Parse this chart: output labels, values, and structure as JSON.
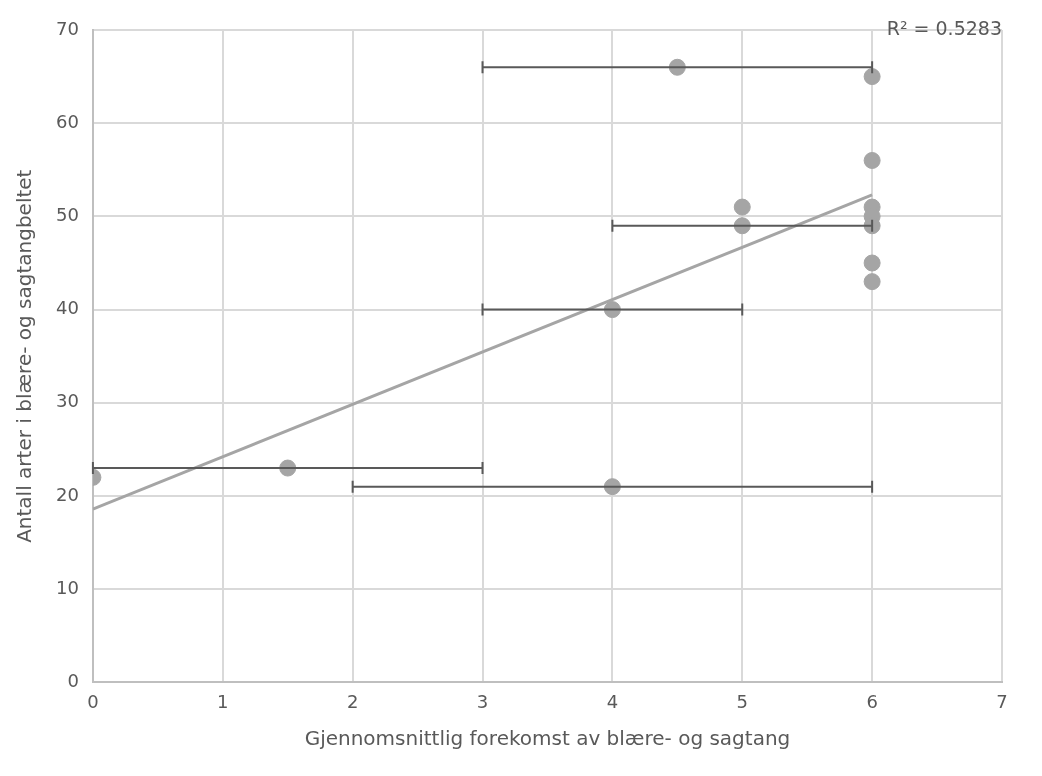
{
  "chart_data": {
    "type": "scatter",
    "xlabel": "Gjennomsnittlig forekomst av blære- og sagtang",
    "ylabel": "Antall arter i blære- og sagtangbeltet",
    "xlim": [
      0,
      7
    ],
    "xticks": [
      0,
      1,
      2,
      3,
      4,
      5,
      6,
      7
    ],
    "ylim": [
      0,
      70
    ],
    "yticks": [
      0,
      10,
      20,
      30,
      40,
      50,
      60,
      70
    ],
    "grid": true,
    "legend": false,
    "marker": "circle",
    "annotations": [
      "R² = 0.5283"
    ],
    "series": [
      {
        "color": "#a5a5a5",
        "x": [
          0,
          1.5,
          4,
          4,
          4.5,
          5,
          5,
          6,
          6,
          6,
          6,
          6,
          6,
          6
        ],
        "values": [
          22,
          23,
          21,
          40,
          66,
          51,
          49,
          65,
          56,
          51,
          50,
          49,
          45,
          43
        ],
        "xerrors": [
          null,
          [
            0,
            3
          ],
          [
            2,
            6
          ],
          [
            3,
            5
          ],
          [
            3,
            6
          ],
          null,
          [
            4,
            6
          ],
          null,
          null,
          null,
          null,
          null,
          null,
          null
        ]
      },
      {
        "type": "line",
        "color": "#a5a5a5",
        "x": [
          0,
          6
        ],
        "values": [
          18.6,
          52.3
        ],
        "marker": "none"
      }
    ]
  }
}
